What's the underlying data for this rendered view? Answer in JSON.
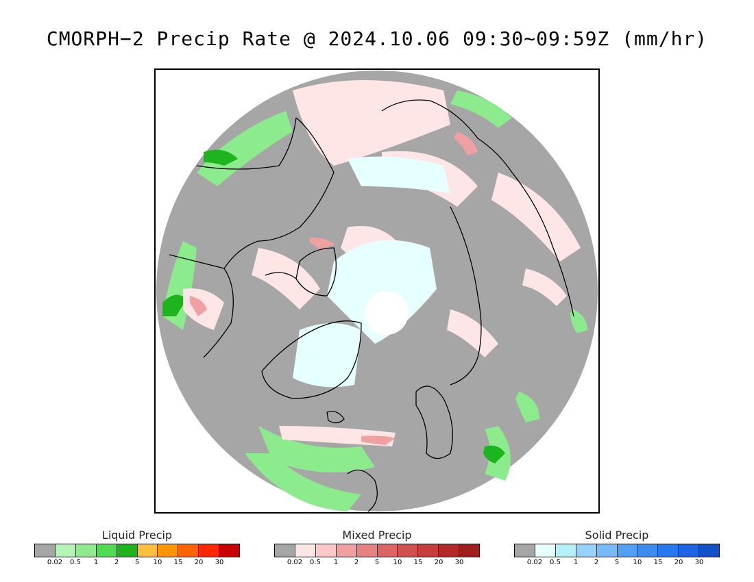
{
  "title": "CMORPH−2 Precip Rate @ 2024.10.06 09:30∼09:59Z (mm/hr)",
  "map": {
    "projection": "north-polar-stereographic",
    "coverage_background": "#a6a6a6",
    "polar_gap_color": "#ffffff",
    "coastline_color": "#000000"
  },
  "legends": [
    {
      "title": "Liquid Precip",
      "ticks": [
        "0.02",
        "0.5",
        "1",
        "2",
        "5",
        "10",
        "15",
        "20",
        "30"
      ],
      "colors": [
        "#a6a6a6",
        "#b4f5b4",
        "#8ceb8c",
        "#50dc50",
        "#1eb41e",
        "#ffbe3c",
        "#ff9600",
        "#ff6400",
        "#ff2800",
        "#c80000"
      ]
    },
    {
      "title": "Mixed Precip",
      "ticks": [
        "0.02",
        "0.5",
        "1",
        "2",
        "5",
        "10",
        "15",
        "20",
        "30"
      ],
      "colors": [
        "#a6a6a6",
        "#ffe6e6",
        "#ffc8c8",
        "#f0a0a0",
        "#e68282",
        "#dc6464",
        "#d25050",
        "#c83c3c",
        "#b42828",
        "#a01e1e"
      ]
    },
    {
      "title": "Solid Precip",
      "ticks": [
        "0.02",
        "0.5",
        "1",
        "2",
        "5",
        "10",
        "15",
        "20",
        "30"
      ],
      "colors": [
        "#a6a6a6",
        "#e6ffff",
        "#b4f0fa",
        "#96d2fa",
        "#78b9fa",
        "#50a0f5",
        "#3c8cf0",
        "#2878f0",
        "#1e64e6",
        "#1450c8"
      ]
    }
  ]
}
